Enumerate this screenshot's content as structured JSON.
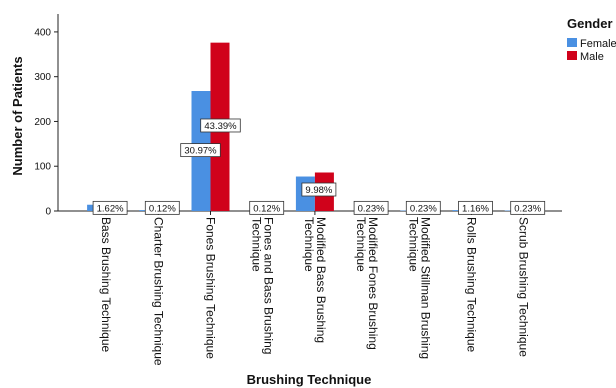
{
  "chart_data": {
    "type": "bar",
    "xlabel": "Brushing Technique",
    "ylabel": "Number of Patients",
    "ylim": [
      0,
      440
    ],
    "yticks": [
      0,
      100,
      200,
      300,
      400
    ],
    "legend_placement": "top-right",
    "legend_title": "Gender",
    "categories": [
      "Bass Brushing Technique",
      "Charter Brushing Technique",
      "Fones Brushing Technique",
      "Fones and Bass Brushing Technique",
      "Modified Bass Brushing Technique",
      "Modified Fones Brushing Technique",
      "Modified Stillman Brushing Technique",
      "Rolls Brushing Technique",
      "Scrub Brushing Technique"
    ],
    "category_label_lines": [
      [
        "Bass Brushing Technique"
      ],
      [
        "Charter Brushing Technique"
      ],
      [
        "Fones Brushing Technique"
      ],
      [
        "Fones and Bass Brushing",
        "Technique"
      ],
      [
        "Modified Bass Brushing",
        "Technique"
      ],
      [
        "Modified Fones Brushing",
        "Technique"
      ],
      [
        "Modified Stillman Brushing",
        "Technique"
      ],
      [
        "Rolls Brushing Technique"
      ],
      [
        "Scrub Brushing Technique"
      ]
    ],
    "series": [
      {
        "name": "Female",
        "color": "#4a90e2",
        "values": [
          14,
          2,
          268,
          0,
          77,
          0,
          1,
          2,
          1
        ]
      },
      {
        "name": "Male",
        "color": "#d0021b",
        "values": [
          2,
          1,
          376,
          1,
          86,
          2,
          1,
          5,
          2
        ]
      }
    ],
    "data_labels": [
      {
        "text": "1.62%",
        "category": 0,
        "y": 7
      },
      {
        "text": "0.12%",
        "category": 1,
        "y": 7
      },
      {
        "text": "43.39%",
        "category": 2,
        "y": 191
      },
      {
        "text": "30.97%",
        "category": 2,
        "y": 136
      },
      {
        "text": "0.12%",
        "category": 3,
        "y": 7
      },
      {
        "text": "9.98%",
        "category": 4,
        "y": 48
      },
      {
        "text": "0.23%",
        "category": 5,
        "y": 7
      },
      {
        "text": "0.23%",
        "category": 6,
        "y": 7
      },
      {
        "text": "1.16%",
        "category": 7,
        "y": 7
      },
      {
        "text": "0.23%",
        "category": 8,
        "y": 7
      }
    ]
  }
}
